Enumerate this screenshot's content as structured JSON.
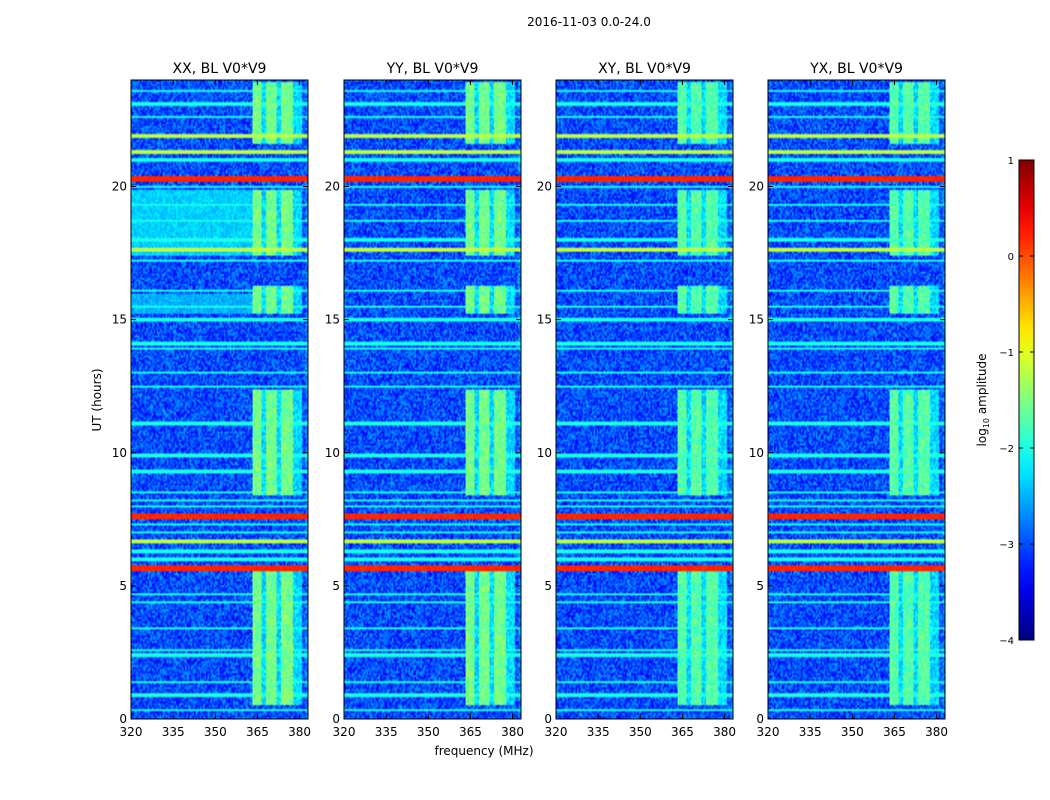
{
  "suptitle": "2016-11-03 0.0-24.0",
  "chart_data": {
    "type": "heatmap",
    "x_label": "frequency (MHz)",
    "y_label": "UT (hours)",
    "x_range": [
      320,
      383
    ],
    "y_range": [
      0,
      24
    ],
    "x_ticks": [
      320,
      335,
      350,
      365,
      380
    ],
    "y_ticks": [
      0,
      5,
      10,
      15,
      20
    ],
    "panels": [
      {
        "title": "XX, BL V0*V9",
        "pol": "XX"
      },
      {
        "title": "YY, BL V0*V9",
        "pol": "YY"
      },
      {
        "title": "XY, BL V0*V9",
        "pol": "XY"
      },
      {
        "title": "YX, BL V0*V9",
        "pol": "YX"
      }
    ],
    "colorbar": {
      "label": "log10 amplitude",
      "label_base": "log",
      "label_sub": "10",
      "label_rest": " amplitude",
      "range": [
        -4,
        1
      ],
      "ticks": [
        1,
        0,
        -1,
        -2,
        -3,
        -4
      ],
      "tick_labels": [
        "1",
        "0",
        "−1",
        "−2",
        "−3",
        "−4"
      ],
      "colormap": "jet"
    },
    "band_features": {
      "rfi_freq_range_mhz": [
        363,
        381
      ],
      "rfi_block_hours": [
        [
          0.5,
          5.6
        ],
        [
          8.4,
          12.4
        ],
        [
          15.2,
          16.3
        ],
        [
          17.4,
          19.9
        ],
        [
          21.6,
          23.9
        ]
      ],
      "strong_horizontal_hours": [
        5.65,
        7.6,
        20.3
      ],
      "medium_horizontal_hours": [
        6.65,
        17.6,
        21.3,
        21.9
      ],
      "baseline_log_amplitude": -3.0
    }
  }
}
